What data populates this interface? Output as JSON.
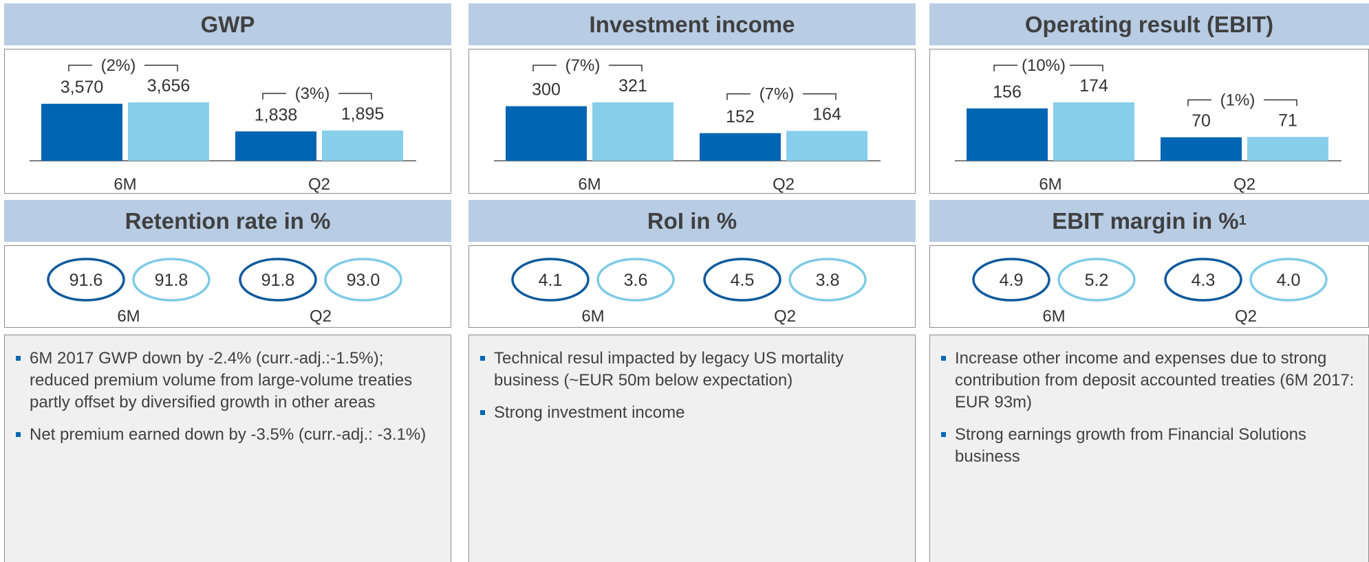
{
  "columns": [
    {
      "bar_chart": {
        "type": "bar",
        "title": "GWP",
        "categories": [
          "6M",
          "Q2"
        ],
        "series": [
          {
            "color": "#0066b3",
            "values": [
              3570,
              1838
            ],
            "value_labels": [
              "3,570",
              "1,838"
            ]
          },
          {
            "color": "#87ceeb",
            "values": [
              3656,
              1895
            ],
            "value_labels": [
              "3,656",
              "1,895"
            ]
          }
        ],
        "changes": [
          "(2%)",
          "(3%)"
        ]
      },
      "ratio_chart": {
        "type": "ratio",
        "title": "Retention rate in %",
        "categories": [
          "6M",
          "Q2"
        ],
        "series": [
          {
            "color": "#0f5a9c",
            "values": [
              91.6,
              91.8
            ],
            "value_labels": [
              "91.6",
              "91.8"
            ]
          },
          {
            "color": "#7fcbe6",
            "values": [
              91.8,
              93.0
            ],
            "value_labels": [
              "91.8",
              "93.0"
            ]
          }
        ]
      },
      "bullets": [
        "6M 2017 GWP down by -2.4% (curr.-adj.:-1.5%); reduced premium volume from large-volume treaties partly offset by diversified growth in other areas",
        "Net premium earned down by -3.5% (curr.-adj.: -3.1%)"
      ]
    },
    {
      "bar_chart": {
        "type": "bar",
        "title": "Investment income",
        "categories": [
          "6M",
          "Q2"
        ],
        "series": [
          {
            "color": "#0066b3",
            "values": [
              300,
              152
            ]
          },
          {
            "color": "#87ceeb",
            "values": [
              321,
              164
            ]
          }
        ],
        "changes": [
          "(7%)",
          "(7%)"
        ]
      },
      "ratio_chart": {
        "type": "ratio",
        "title": "RoI in %",
        "categories": [
          "6M",
          "Q2"
        ],
        "series": [
          {
            "color": "#0f5a9c",
            "values": [
              4.1,
              4.5
            ],
            "value_labels": [
              "4.1",
              "4.5"
            ]
          },
          {
            "color": "#7fcbe6",
            "values": [
              3.6,
              3.8
            ],
            "value_labels": [
              "3.6",
              "3.8"
            ]
          }
        ]
      },
      "bullets": [
        "Technical resul impacted by legacy US mortality business (~EUR 50m below expectation)",
        "Strong investment income"
      ]
    },
    {
      "bar_chart": {
        "type": "bar",
        "title": "Operating result (EBIT)",
        "categories": [
          "6M",
          "Q2"
        ],
        "series": [
          {
            "color": "#0066b3",
            "values": [
              156,
              70
            ]
          },
          {
            "color": "#87ceeb",
            "values": [
              174,
              71
            ]
          }
        ],
        "changes": [
          "(10%)",
          "(1%)"
        ]
      },
      "ratio_chart": {
        "type": "ratio",
        "title": "EBIT margin in %",
        "footnote": "1",
        "categories": [
          "6M",
          "Q2"
        ],
        "series": [
          {
            "color": "#0f5a9c",
            "values": [
              4.9,
              4.3
            ],
            "value_labels": [
              "4.9",
              "4.3"
            ]
          },
          {
            "color": "#7fcbe6",
            "values": [
              5.2,
              4.0
            ],
            "value_labels": [
              "5.2",
              "4.0"
            ]
          }
        ]
      },
      "bullets": [
        "Increase other income and expenses due to strong contribution from deposit accounted treaties (6M 2017: EUR 93m)",
        "Strong earnings growth from Financial Solutions business"
      ]
    }
  ]
}
